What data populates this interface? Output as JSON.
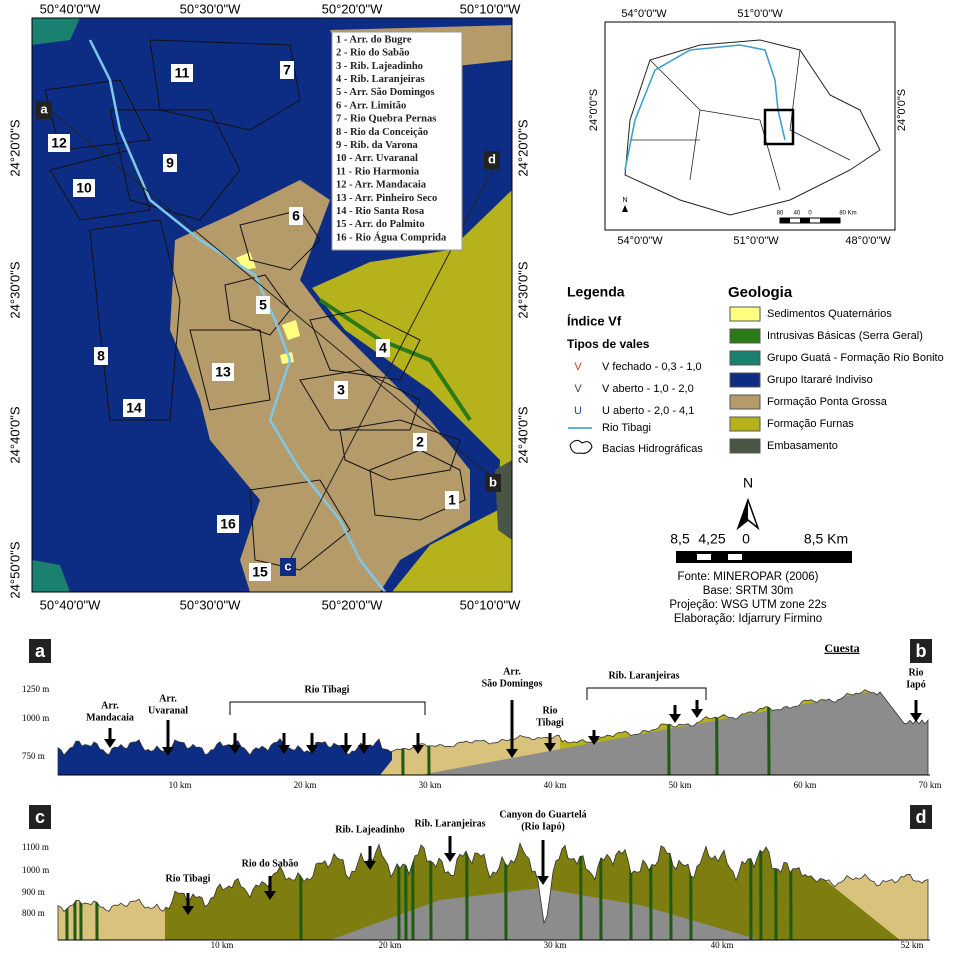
{
  "main_map": {
    "lon_labels_top": [
      "50°40'0\"W",
      "50°30'0\"W",
      "50°20'0\"W",
      "50°10'0\"W"
    ],
    "lon_labels_bottom": [
      "50°40'0\"W",
      "50°30'0\"W",
      "50°20'0\"W",
      "50°10'0\"W"
    ],
    "lat_labels_left": [
      "24°20'0\"S",
      "24°30'0\"S",
      "24°40'0\"S",
      "24°50'0\"S"
    ],
    "lat_labels_right": [
      "24°20'0\"S",
      "24°30'0\"S",
      "24°40'0\"S"
    ],
    "basin_list": [
      "1 - Arr. do Bugre",
      "2 - Rio do Sabão",
      "3 - Rib. Lajeadinho",
      "4 - Rib. Laranjeiras",
      "5 - Arr. São Domingos",
      "6 - Arr. Limitão",
      "7 - Rio Quebra Pernas",
      "8 - Rio da Conceição",
      "9 - Rib. da Varona",
      "10 - Arr. Uvaranal",
      "11 - Rio Harmonia",
      "12 - Arr. Mandacaia",
      "13 - Arr. Pinheiro Seco",
      "14 - Rio Santa Rosa",
      "15 - Arr. do Palmito",
      "16 - Rio Água Comprida"
    ],
    "basin_numbers": [
      "1",
      "2",
      "3",
      "4",
      "5",
      "6",
      "7",
      "8",
      "9",
      "10",
      "11",
      "12",
      "13",
      "14",
      "15",
      "16"
    ],
    "profile_points": [
      "a",
      "b",
      "c",
      "d"
    ]
  },
  "inset_map": {
    "lon_labels_top": [
      "54°0'0\"W",
      "51°0'0\"W"
    ],
    "lon_labels_bottom": [
      "54°0'0\"W",
      "51°0'0\"W",
      "48°0'0\"W"
    ],
    "lat_labels_left": [
      "24°0'0\"S"
    ],
    "lat_labels_right": [
      "24°0'0\"S"
    ],
    "north": "N",
    "scale_labels": [
      "80",
      "40",
      "0",
      "80 Km"
    ]
  },
  "legend": {
    "title": "Legenda",
    "index_title": "Índice Vf",
    "valley_title": "Tipos de vales",
    "valley_items": [
      {
        "symbol": "V",
        "color": "#c0392b",
        "label": "V fechado - 0,3 - 1,0"
      },
      {
        "symbol": "V",
        "color": "#444444",
        "label": "V aberto - 1,0 - 2,0"
      },
      {
        "symbol": "U",
        "color": "#2c3e9a",
        "label": "U aberto - 2,0 - 4,1"
      }
    ],
    "river": "Rio Tibagi",
    "basins": "Bacias Hidrográficas"
  },
  "geology": {
    "title": "Geologia",
    "items": [
      {
        "label": "Sedimentos Quaternários",
        "color": "#ffff80"
      },
      {
        "label": "Intrusivas Básicas (Serra Geral)",
        "color": "#2b7a18"
      },
      {
        "label": "Grupo Guatá - Formação Rio Bonito",
        "color": "#1a8070"
      },
      {
        "label": "Grupo Itararé Indiviso",
        "color": "#0c2d83"
      },
      {
        "label": "Formação Ponta Grossa",
        "color": "#b59a6a"
      },
      {
        "label": "Formação Furnas",
        "color": "#b6b21c"
      },
      {
        "label": "Embasamento",
        "color": "#4a5545"
      }
    ]
  },
  "scale_bar": {
    "north": "N",
    "labels": [
      "8,5",
      "4,25",
      "0",
      "8,5 Km"
    ]
  },
  "credits": [
    "Fonte: MINEROPAR (2006)",
    "Base: SRTM 30m",
    "Projeção: WSG UTM zone 22s",
    "Elaboração: Idjarrury Firmino"
  ],
  "profile_ab": {
    "start": "a",
    "end": "b",
    "cuesta": "Cuesta",
    "y_labels": [
      "1250 m",
      "1000 m",
      "750 m"
    ],
    "x_labels": [
      "10 km",
      "20 km",
      "30 km",
      "40 km",
      "50 km",
      "60 km",
      "70 km"
    ],
    "annotations": [
      [
        "Arr.",
        "Mandacaia"
      ],
      [
        "Arr.",
        "Uvaranal"
      ],
      [
        "Rio Tibagi"
      ],
      [
        "Arr.",
        "São Domingos"
      ],
      [
        "Rio",
        "Tibagi"
      ],
      [
        "Rib. Laranjeiras"
      ],
      [
        "Rio",
        "Iapó"
      ]
    ]
  },
  "profile_cd": {
    "start": "c",
    "end": "d",
    "y_labels": [
      "1100 m",
      "1000 m",
      "900 m",
      "800 m"
    ],
    "x_labels": [
      "10 km",
      "20 km",
      "30 km",
      "40 km",
      "52 km"
    ],
    "annotations": [
      [
        "Rio Tibagi"
      ],
      [
        "Rio do Sabão"
      ],
      [
        "Rib. Lajeadinho"
      ],
      [
        "Rib. Laranjeiras"
      ],
      [
        "Canyon do Guartelá",
        "(Rio Iapó)"
      ]
    ]
  }
}
